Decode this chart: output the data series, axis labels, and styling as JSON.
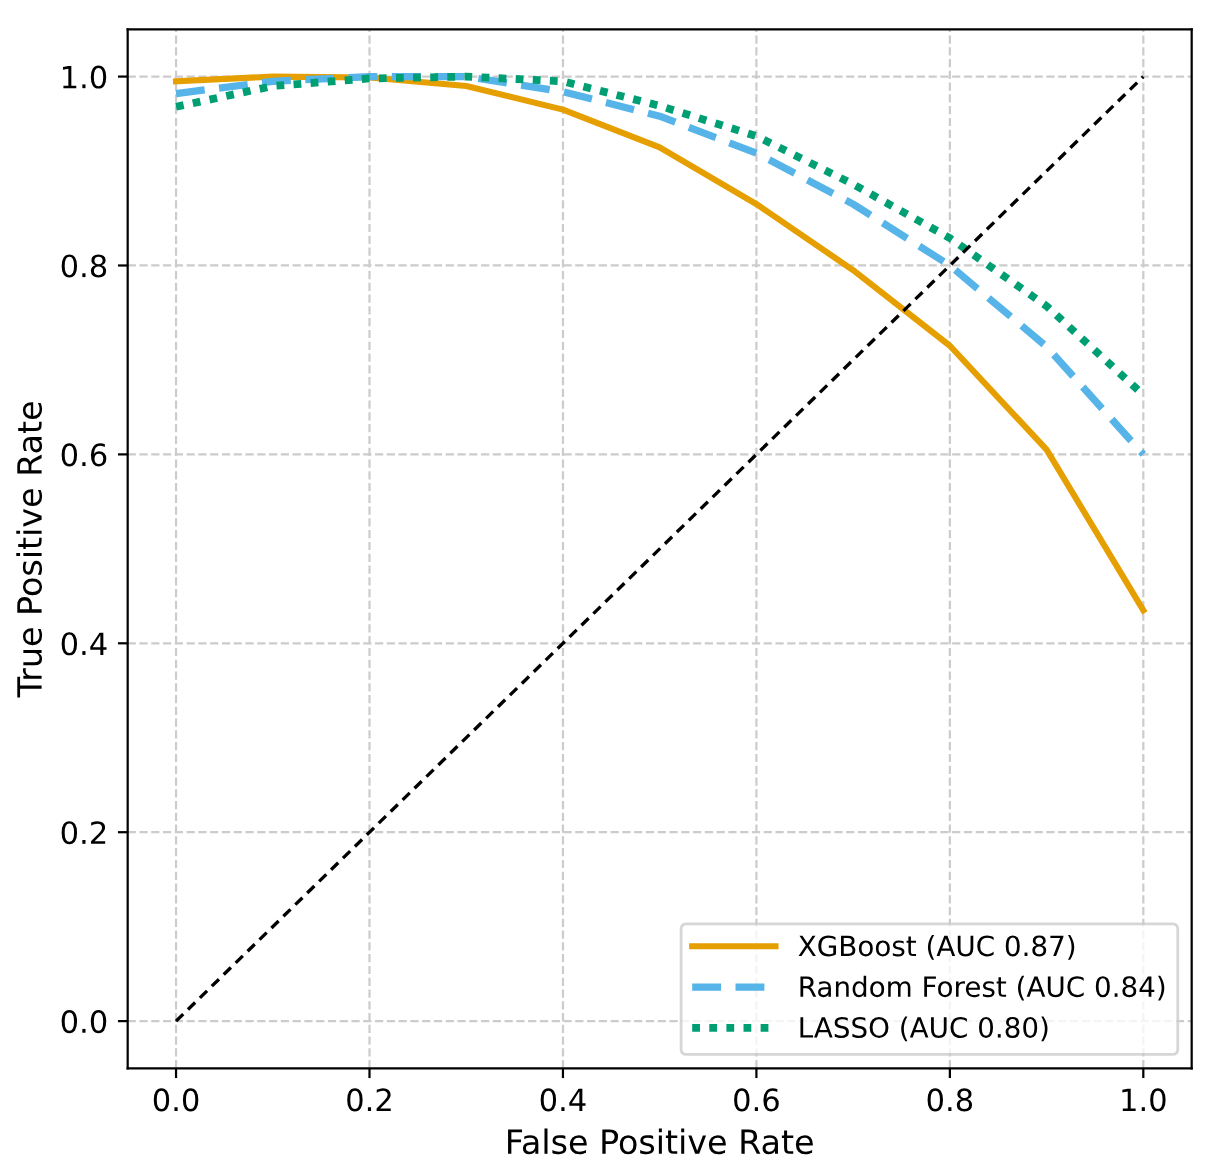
{
  "chart_data": {
    "type": "line",
    "xlabel": "False Positive Rate",
    "ylabel": "True Positive Rate",
    "x": [
      0,
      0.1,
      0.2,
      0.3,
      0.4,
      0.5,
      0.6,
      0.7,
      0.8,
      0.9,
      1.0
    ],
    "series": [
      {
        "name": "XGBoost (AUC 0.87)",
        "color": "#e69f00",
        "line_style": "solid",
        "values": [
          0.995,
          1.0,
          0.999,
          0.99,
          0.965,
          0.925,
          0.865,
          0.795,
          0.715,
          0.605,
          0.435
        ]
      },
      {
        "name": "Random Forest (AUC 0.84)",
        "color": "#56b4e9",
        "line_style": "dashed",
        "values": [
          0.982,
          0.995,
          1.0,
          1.0,
          0.984,
          0.958,
          0.919,
          0.865,
          0.8,
          0.714,
          0.6
        ]
      },
      {
        "name": "LASSO (AUC 0.80)",
        "color": "#009e73",
        "line_style": "dotted",
        "values": [
          0.968,
          0.99,
          0.998,
          1.0,
          0.995,
          0.969,
          0.937,
          0.886,
          0.829,
          0.757,
          0.663
        ]
      },
      {
        "color": "#000000",
        "line_style": "dashed",
        "x": [
          0,
          1
        ],
        "values": [
          0,
          1
        ]
      }
    ],
    "xlim": [
      -0.05,
      1.05
    ],
    "ylim": [
      -0.05,
      1.05
    ],
    "xticks": [
      {
        "value": 0,
        "label": "0.0"
      },
      0.2,
      0.4,
      0.6,
      0.8,
      {
        "value": 1,
        "label": "1.0"
      }
    ],
    "yticks": [
      {
        "value": 0,
        "label": "0.0"
      },
      0.2,
      0.4,
      0.6,
      0.8,
      {
        "value": 1,
        "label": "1.0"
      }
    ],
    "grid": true,
    "legend": "bottom right",
    "marker": "none"
  }
}
